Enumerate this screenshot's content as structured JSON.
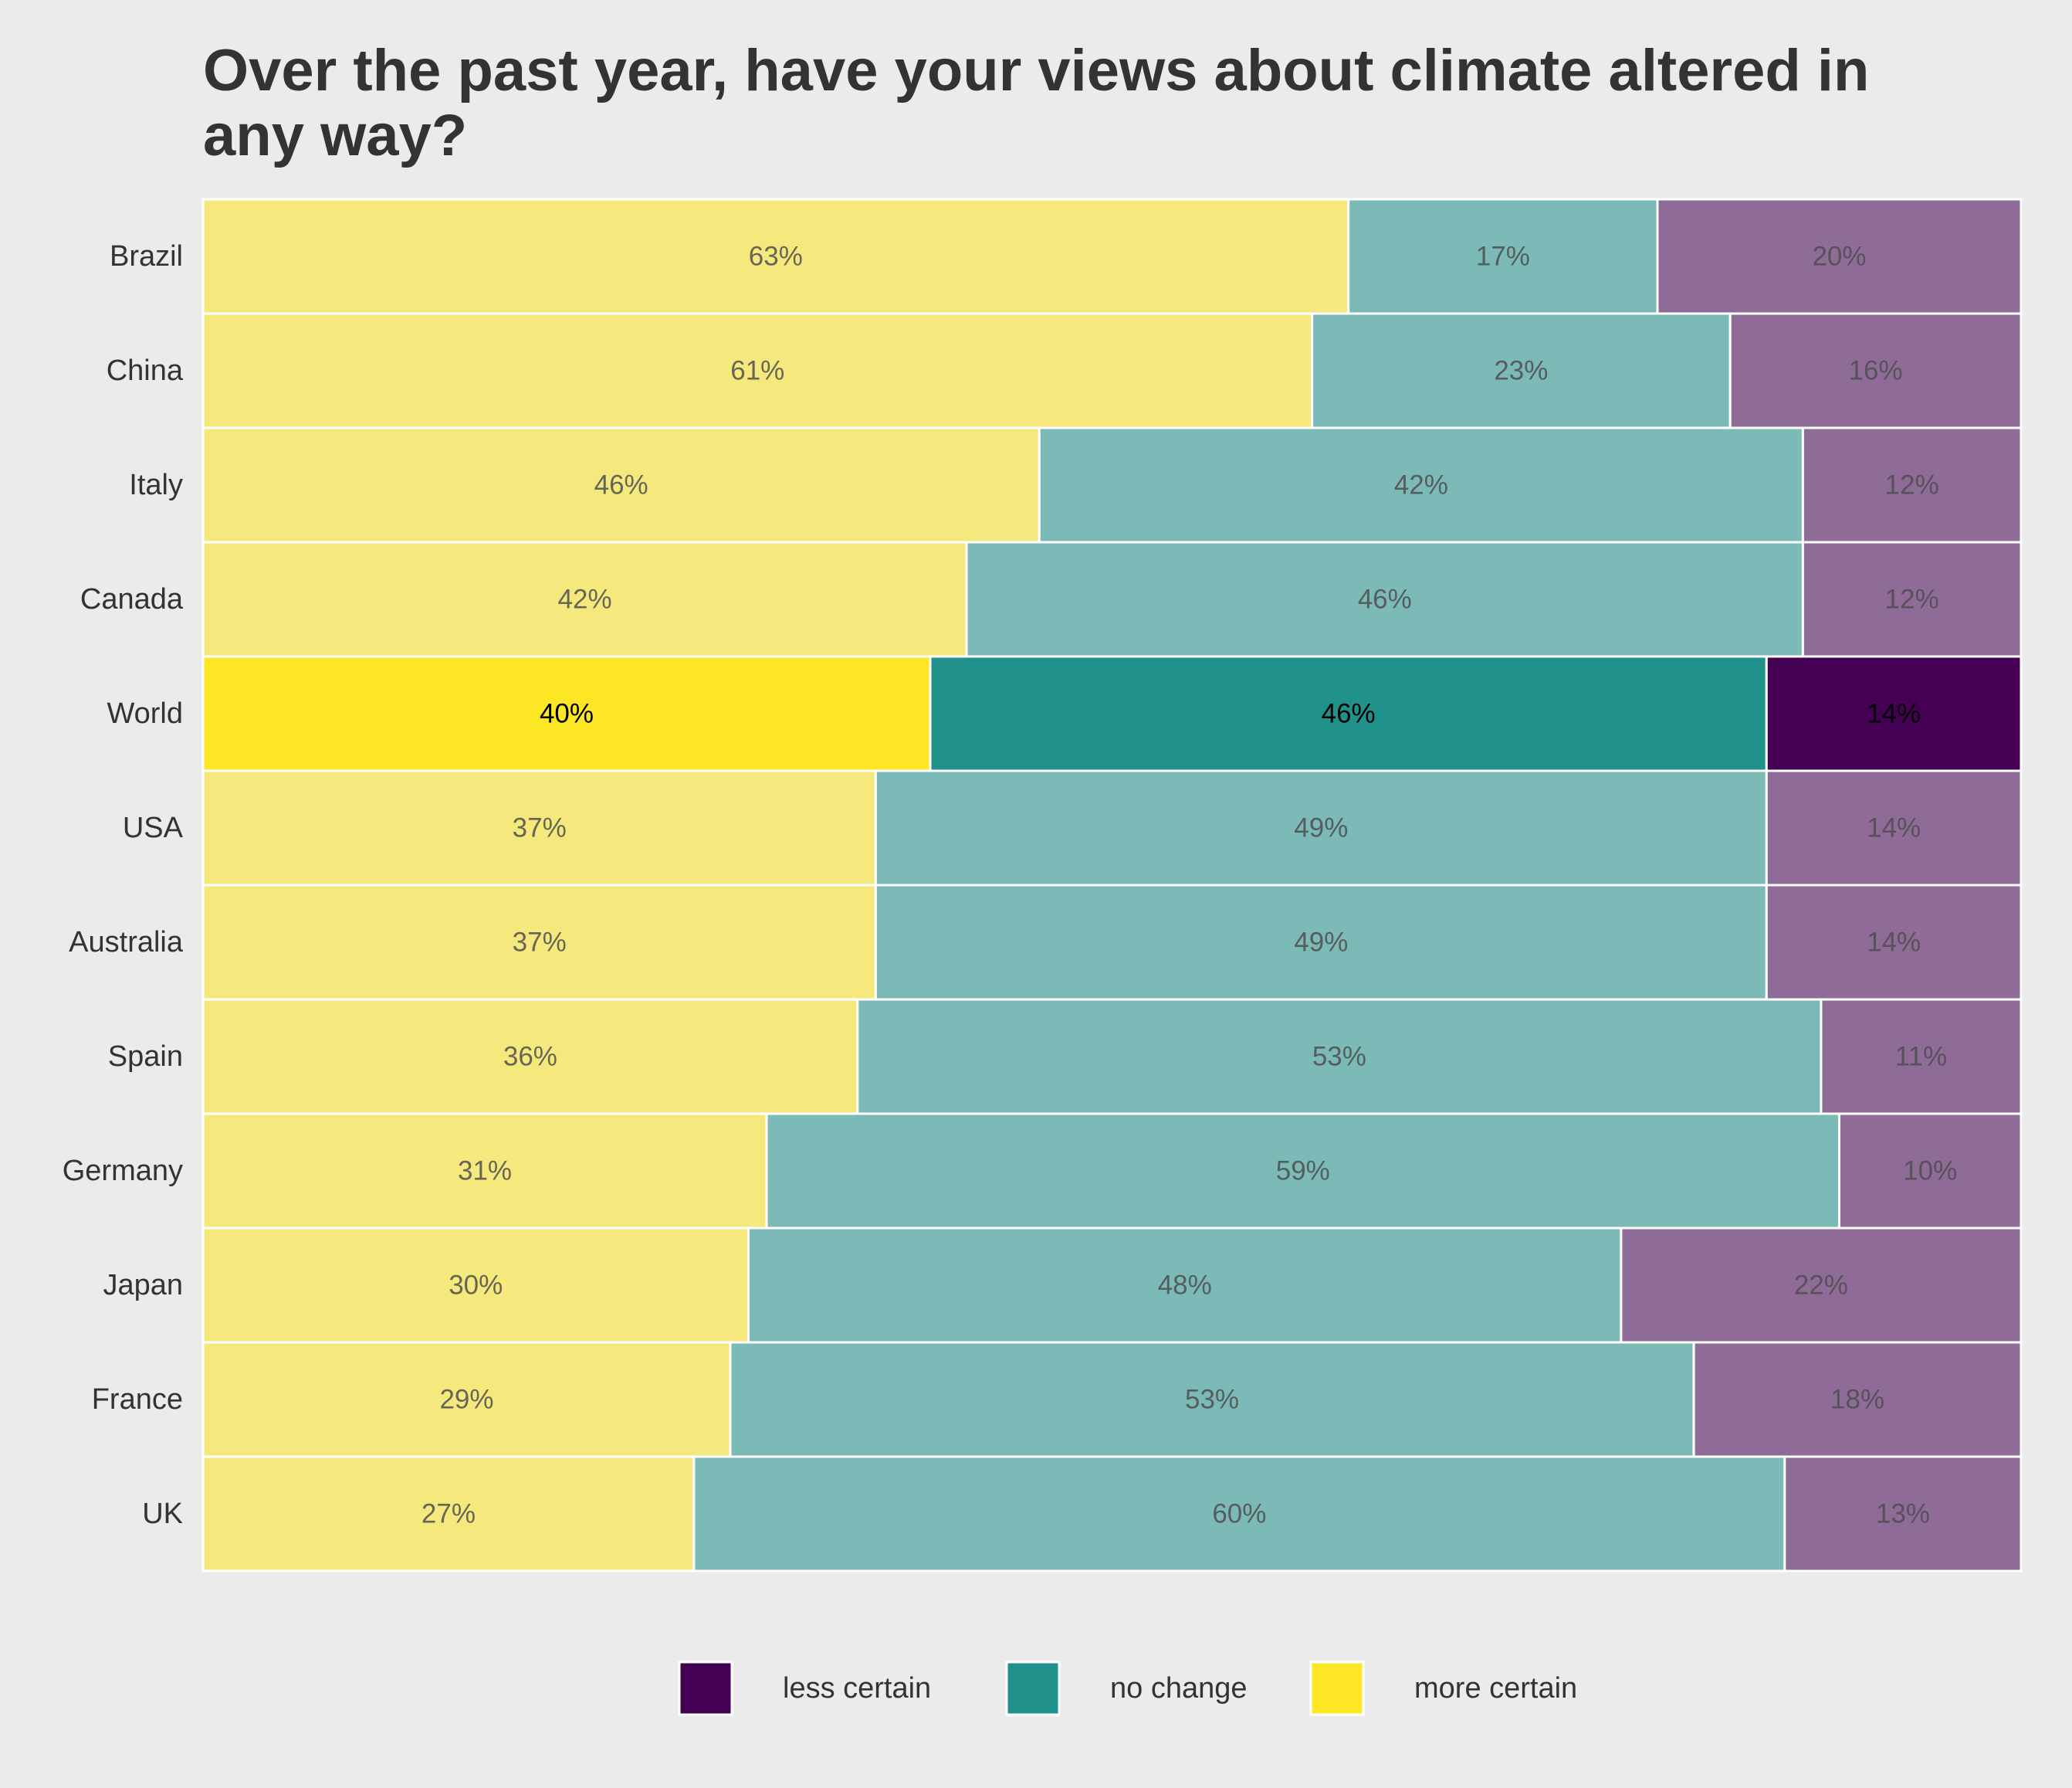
{
  "chart_data": {
    "type": "bar",
    "orientation": "horizontal",
    "stacked": true,
    "normalized": true,
    "title": "Over the past year, have your views about climate altered in any way?",
    "categories": [
      "Brazil",
      "China",
      "Italy",
      "Canada",
      "World",
      "USA",
      "Australia",
      "Spain",
      "Germany",
      "Japan",
      "France",
      "UK"
    ],
    "highlight_category": "World",
    "series": [
      {
        "name": "more certain",
        "color": "#fde725",
        "values": [
          63,
          61,
          46,
          42,
          40,
          37,
          37,
          36,
          31,
          30,
          29,
          27
        ],
        "labels": [
          "63%",
          "61%",
          "46%",
          "42%",
          "40%",
          "37%",
          "37%",
          "36%",
          "31%",
          "30%",
          "29%",
          "27%"
        ]
      },
      {
        "name": "no change",
        "color": "#21918c",
        "values": [
          17,
          23,
          42,
          46,
          46,
          49,
          49,
          53,
          59,
          48,
          53,
          60
        ],
        "labels": [
          "17%",
          "23%",
          "42%",
          "46%",
          "46%",
          "49%",
          "49%",
          "53%",
          "59%",
          "48%",
          "53%",
          "60%"
        ]
      },
      {
        "name": "less certain",
        "color": "#440154",
        "values": [
          20,
          16,
          12,
          12,
          14,
          14,
          14,
          11,
          10,
          22,
          18,
          13
        ],
        "labels": [
          "20%",
          "16%",
          "12%",
          "12%",
          "14%",
          "14%",
          "14%",
          "11%",
          "10%",
          "22%",
          "18%",
          "13%"
        ]
      }
    ],
    "xlim": [
      0,
      100
    ],
    "grid": false,
    "legend_position": "bottom",
    "legend_order": [
      "less certain",
      "no change",
      "more certain"
    ]
  }
}
